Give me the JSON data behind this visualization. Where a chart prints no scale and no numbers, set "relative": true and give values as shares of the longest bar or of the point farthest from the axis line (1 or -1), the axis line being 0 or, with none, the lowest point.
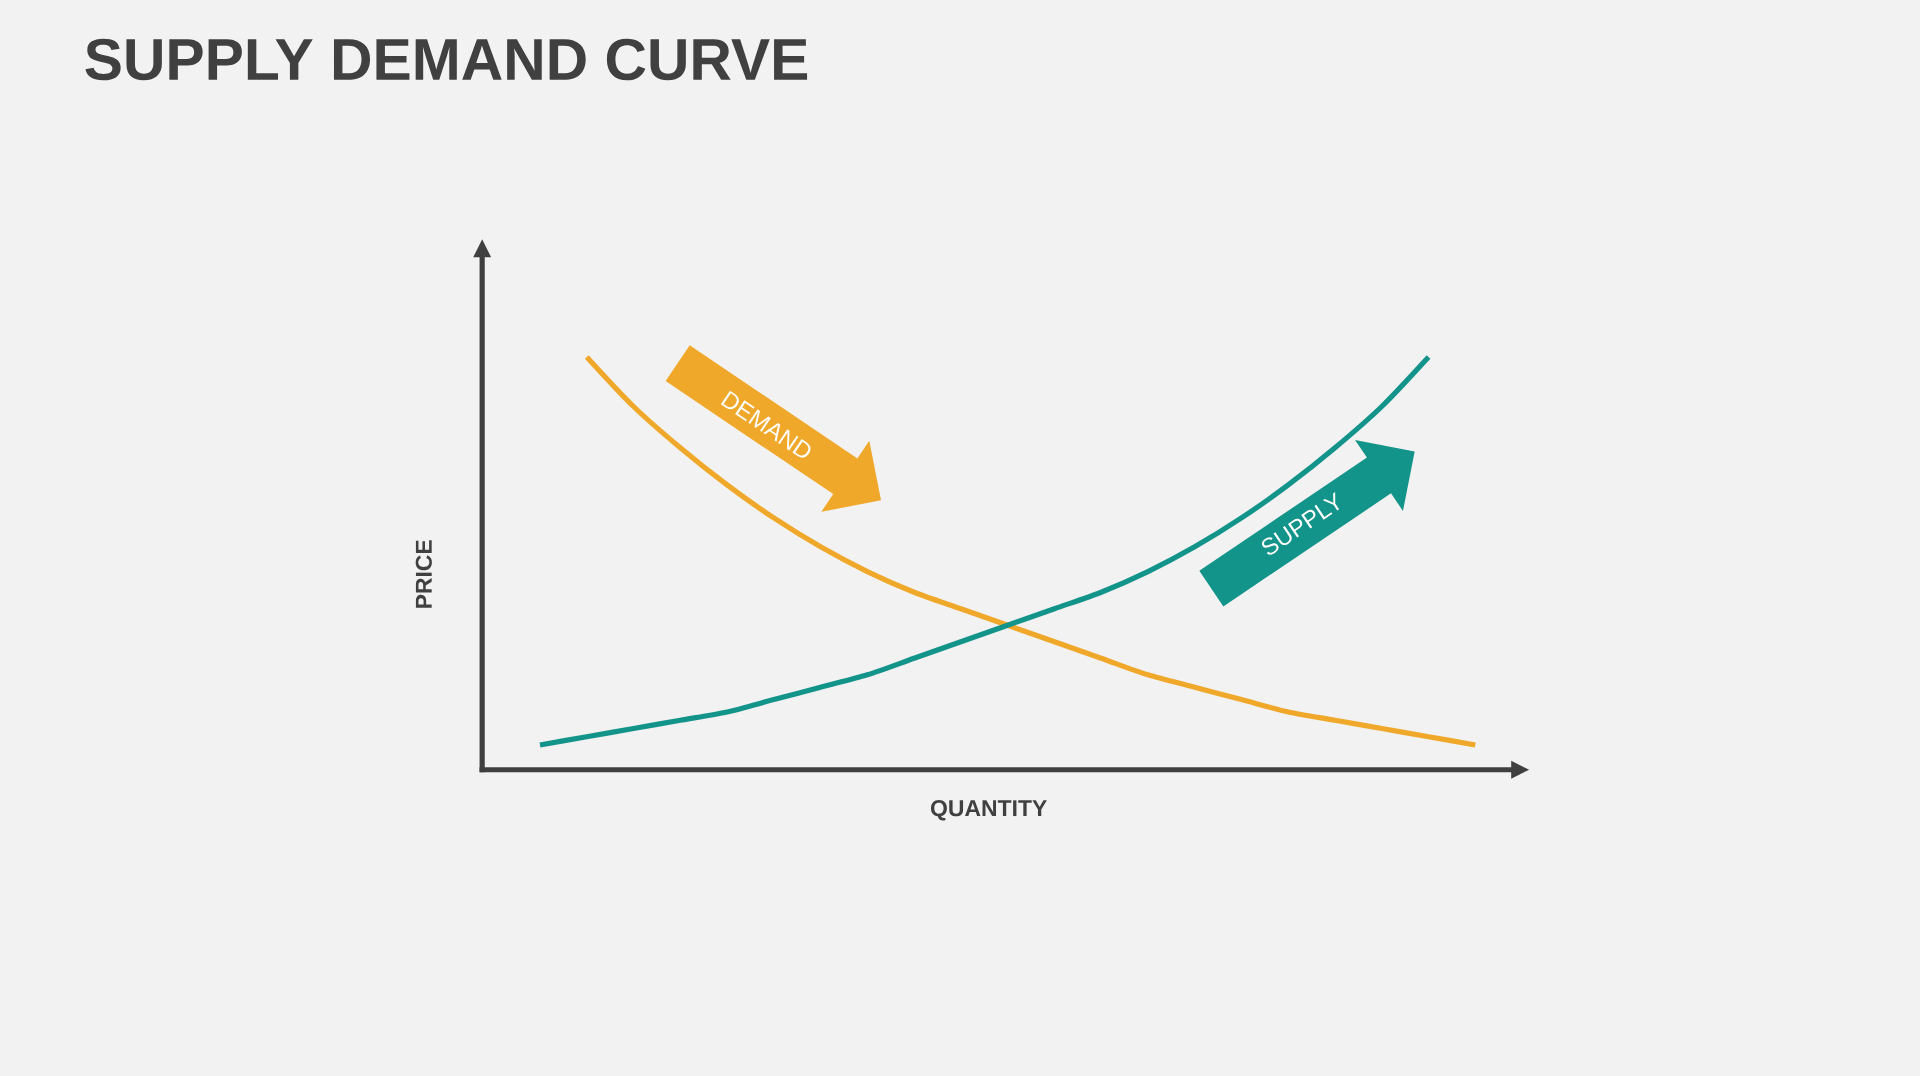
{
  "chart_data": {
    "type": "line",
    "title": "SUPPLY DEMAND CURVE",
    "xlabel": "QUANTITY",
    "ylabel": "PRICE",
    "relative": true,
    "marker": "none",
    "line_style": "solid",
    "categories": [
      null,
      null,
      null,
      null,
      null,
      null,
      null,
      null,
      null,
      null,
      null,
      null,
      null,
      null,
      null,
      null,
      null,
      null,
      null,
      null,
      null
    ],
    "series": [
      {
        "name": "DEMAND",
        "color": "#f0a82a",
        "values": [
          null,
          1.0,
          0.88,
          0.78,
          0.69,
          0.61,
          0.54,
          0.48,
          0.43,
          0.39,
          0.35,
          0.31,
          0.27,
          0.23,
          0.2,
          0.17,
          0.14,
          0.12,
          0.1,
          0.08,
          0.06
        ]
      },
      {
        "name": "SUPPLY",
        "color": "#13948a",
        "values": [
          0.06,
          0.08,
          0.1,
          0.12,
          0.14,
          0.17,
          0.2,
          0.23,
          0.27,
          0.31,
          0.35,
          0.39,
          0.43,
          0.48,
          0.54,
          0.61,
          0.69,
          0.78,
          0.88,
          1.0,
          null
        ]
      }
    ]
  }
}
